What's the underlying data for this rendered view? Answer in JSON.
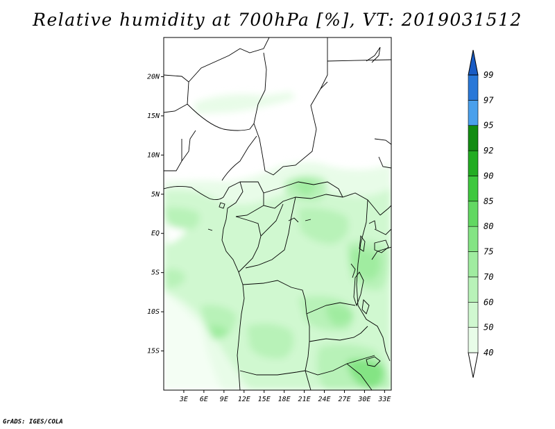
{
  "title": "Relative humidity at 700hPa [%], VT: 2019031512",
  "credit": "GrADS: IGES/COLA",
  "chart_data": {
    "type": "heatmap",
    "variable": "Relative humidity",
    "level": "700hPa",
    "unit": "%",
    "valid_time": "2019031512",
    "lon_range": [
      0,
      34
    ],
    "lat_range": [
      -20,
      25
    ],
    "x_ticks": [
      "3E",
      "6E",
      "9E",
      "12E",
      "15E",
      "18E",
      "21E",
      "24E",
      "27E",
      "30E",
      "33E"
    ],
    "x_tick_values": [
      3,
      6,
      9,
      12,
      15,
      18,
      21,
      24,
      27,
      30,
      33
    ],
    "y_ticks": [
      "20N",
      "15N",
      "10N",
      "5N",
      "EQ",
      "5S",
      "10S",
      "15S"
    ],
    "y_tick_values": [
      20,
      15,
      10,
      5,
      0,
      -5,
      -10,
      -15
    ],
    "colorbar": {
      "levels": [
        40,
        50,
        60,
        70,
        75,
        80,
        85,
        90,
        92,
        95,
        97,
        99
      ],
      "labels": [
        "40",
        "50",
        "60",
        "70",
        "75",
        "80",
        "85",
        "90",
        "92",
        "95",
        "97",
        "99"
      ],
      "colors": [
        "#ffffff",
        "#e8fce8",
        "#d0f8d0",
        "#b8f2b8",
        "#a0eca0",
        "#84e484",
        "#62d862",
        "#3ec83e",
        "#22ac22",
        "#128c12",
        "#4aa0ec",
        "#2a78d8",
        "#1a5cc4"
      ]
    }
  }
}
